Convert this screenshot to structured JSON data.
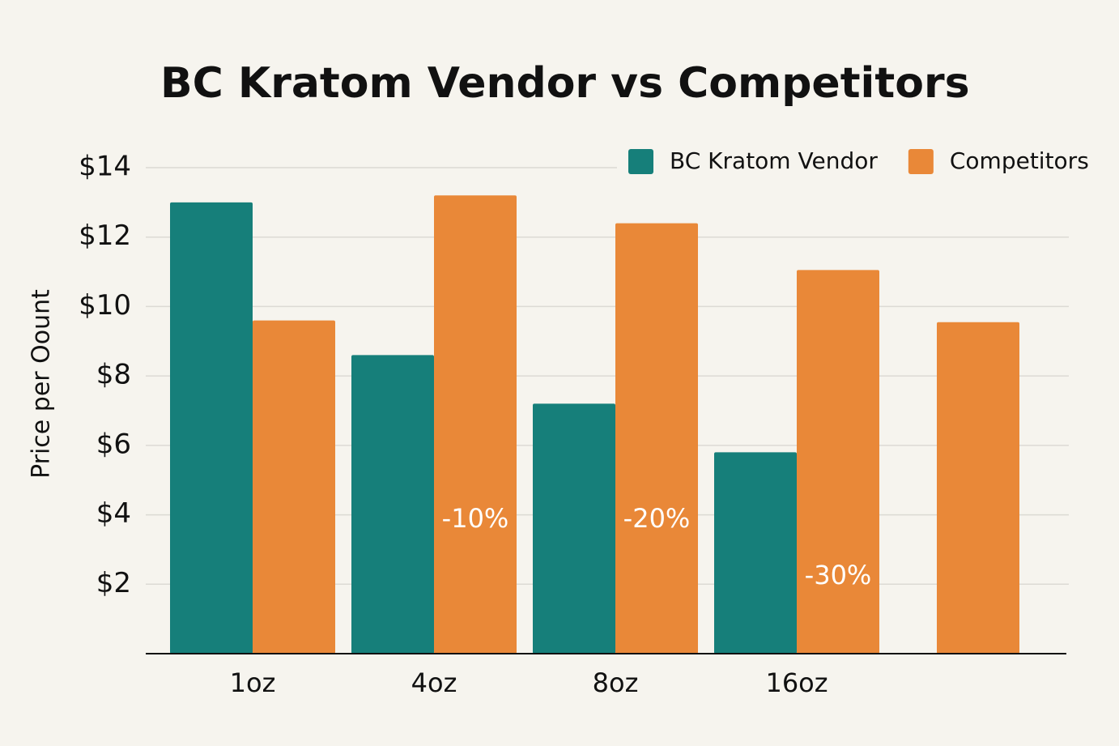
{
  "chart_data": {
    "type": "bar",
    "title": "BC Kratom Vendor vs Competitors",
    "y_label": "Price per Oount",
    "categories": [
      "1oz",
      "4oz",
      "8oz",
      "16oz",
      null
    ],
    "series": [
      {
        "name": "BC Kratom Vendor",
        "color": "#167f7a",
        "values": [
          13,
          8.6,
          7.2,
          5.8,
          null
        ]
      },
      {
        "name": "Competitors",
        "color": "#e98838",
        "values": [
          9.6,
          13.2,
          12.4,
          11.05,
          9.55
        ]
      }
    ],
    "annotations": [
      {
        "text": "-10%",
        "category": "4oz"
      },
      {
        "text": "-20%",
        "category": "8oz"
      },
      {
        "text": "-30%",
        "category": "16oz"
      }
    ],
    "ylim": [
      0,
      14
    ],
    "yticks": [
      {
        "value": 2,
        "label": "$2"
      },
      {
        "value": 4,
        "label": "$4"
      },
      {
        "value": 6,
        "label": "$6"
      },
      {
        "value": 8,
        "label": "$8"
      },
      {
        "value": 10,
        "label": "$10"
      },
      {
        "value": 12,
        "label": "$12"
      },
      {
        "value": 14,
        "label": "$14"
      }
    ],
    "grid": true,
    "legend": "top-right"
  }
}
